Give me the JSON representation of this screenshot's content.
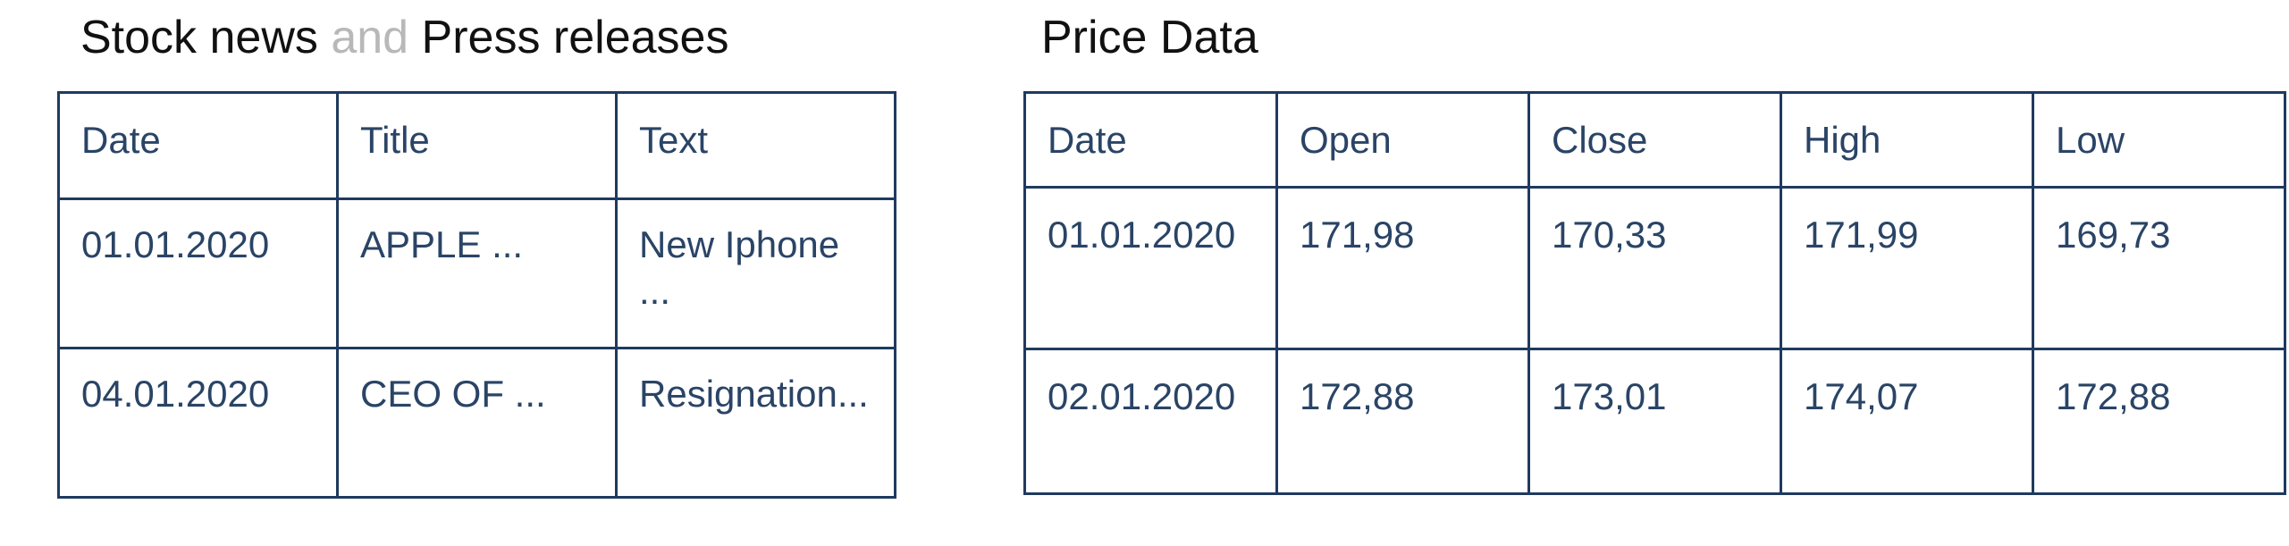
{
  "news": {
    "heading": {
      "part1": "Stock news ",
      "part2": "and",
      "part3": " Press releases"
    },
    "columns": [
      "Date",
      "Title",
      "Text"
    ],
    "rows": [
      [
        "01.01.2020",
        "APPLE ...",
        "New Iphone ..."
      ],
      [
        "04.01.2020",
        "CEO OF ...",
        "Resignation..."
      ]
    ]
  },
  "price": {
    "heading": "Price Data",
    "columns": [
      "Date",
      "Open",
      "Close",
      "High",
      "Low"
    ],
    "rows": [
      [
        "01.01.2020",
        "171,98",
        "170,33",
        "171,99",
        "169,73"
      ],
      [
        "02.01.2020",
        "172,88",
        "173,01",
        "174,07",
        "172,88"
      ]
    ]
  },
  "colors": {
    "border": "#1f3a5f",
    "text": "#2a4466",
    "muted": "#b8b8b8"
  }
}
